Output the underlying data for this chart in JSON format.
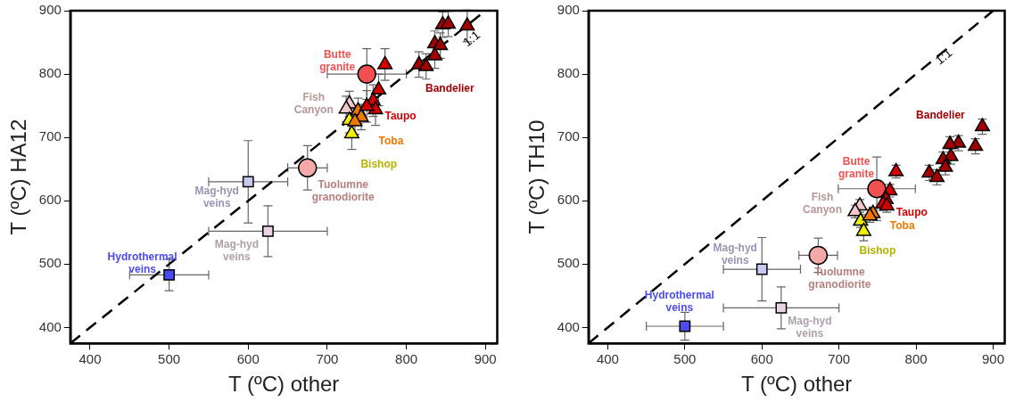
{
  "chart_data": [
    {
      "type": "scatter",
      "xlabel": "T (ºC) other",
      "ylabel": "T (ºC) HA12",
      "xlim": [
        375,
        915
      ],
      "ylim": [
        375,
        900
      ],
      "xticks": [
        400,
        500,
        600,
        700,
        800,
        900
      ],
      "yticks": [
        400,
        500,
        600,
        700,
        800,
        900
      ],
      "series": [
        {
          "name": "1:1",
          "type": "line",
          "color": "#000000",
          "line_style": "dashed",
          "marker": "none",
          "x": [
            375,
            900
          ],
          "values": [
            375,
            900
          ]
        },
        {
          "name": "Hydrothermal veins",
          "color": "#4b4bf0",
          "marker": "square",
          "x": [
            500
          ],
          "values": [
            483
          ],
          "errors": [
            25
          ],
          "xerrors": [
            50
          ]
        },
        {
          "name": "Mag-hyd veins",
          "color": "#c8c8f0",
          "marker": "square",
          "x": [
            600
          ],
          "values": [
            630
          ],
          "errors": [
            65
          ],
          "xerrors": [
            50
          ]
        },
        {
          "name": "Mag-hyd veins",
          "color": "#e8d4e4",
          "marker": "square",
          "x": [
            625
          ],
          "values": [
            552
          ],
          "errors": [
            40
          ],
          "xerrors": [
            75
          ]
        },
        {
          "name": "Tuolumne granodiorite",
          "color": "#f4a8a8",
          "marker": "circle",
          "x": [
            675
          ],
          "values": [
            652
          ],
          "errors": [
            35
          ],
          "xerrors": [
            25
          ]
        },
        {
          "name": "Butte granite",
          "color": "#f05050",
          "marker": "circle",
          "x": [
            750
          ],
          "values": [
            800
          ],
          "errors": [
            40
          ],
          "xerrors": [
            50
          ]
        },
        {
          "name": "Fish Canyon",
          "color": "#f4c8c8",
          "marker": "triangle",
          "x": [
            728,
            724
          ],
          "values": [
            753,
            745
          ],
          "errors": [
            20,
            20
          ]
        },
        {
          "name": "Bishop",
          "color": "#f0f000",
          "marker": "triangle",
          "x": [
            728,
            731
          ],
          "values": [
            727,
            706
          ],
          "errors": [
            20,
            25
          ]
        },
        {
          "name": "Toba",
          "color": "#f07800",
          "marker": "triangle",
          "x": [
            739,
            743,
            735
          ],
          "values": [
            742,
            732,
            725
          ],
          "errors": [
            20,
            20,
            20
          ]
        },
        {
          "name": "Taupo",
          "color": "#d40000",
          "marker": "triangle",
          "x": [
            765,
            758,
            761,
            750,
            773
          ],
          "values": [
            775,
            758,
            744,
            749,
            815
          ],
          "errors": [
            25,
            25,
            25,
            25,
            25
          ]
        },
        {
          "name": "Bandelier",
          "color": "#a00000",
          "marker": "triangle",
          "x": [
            846,
            853,
            877,
            836,
            843,
            836,
            816,
            825
          ],
          "values": [
            878,
            879,
            876,
            848,
            845,
            829,
            815,
            812
          ],
          "errors": [
            20,
            20,
            25,
            20,
            20,
            20,
            20,
            20
          ]
        }
      ]
    },
    {
      "type": "scatter",
      "xlabel": "T (ºC) other",
      "ylabel": "T (ºC) TH10",
      "xlim": [
        375,
        915
      ],
      "ylim": [
        375,
        900
      ],
      "xticks": [
        400,
        500,
        600,
        700,
        800,
        900
      ],
      "yticks": [
        400,
        500,
        600,
        700,
        800,
        900
      ],
      "series": [
        {
          "name": "1:1",
          "type": "line",
          "color": "#000000",
          "line_style": "dashed",
          "marker": "none",
          "x": [
            375,
            900
          ],
          "values": [
            375,
            900
          ]
        },
        {
          "name": "Hydrothermal veins",
          "color": "#4b4bf0",
          "marker": "square",
          "x": [
            500
          ],
          "values": [
            402
          ],
          "errors": [
            22
          ],
          "xerrors": [
            50
          ]
        },
        {
          "name": "Mag-hyd veins",
          "color": "#c8c8f0",
          "marker": "square",
          "x": [
            600
          ],
          "values": [
            492
          ],
          "errors": [
            50
          ],
          "xerrors": [
            50
          ]
        },
        {
          "name": "Mag-hyd veins",
          "color": "#e8d4e4",
          "marker": "square",
          "x": [
            625
          ],
          "values": [
            431
          ],
          "errors": [
            33
          ],
          "xerrors": [
            75
          ]
        },
        {
          "name": "Tuolumne granodiorite",
          "color": "#f4a8a8",
          "marker": "circle",
          "x": [
            673
          ],
          "values": [
            514
          ],
          "errors": [
            27
          ],
          "xerrors": [
            25
          ]
        },
        {
          "name": "Butte granite",
          "color": "#f05050",
          "marker": "circle",
          "x": [
            749
          ],
          "values": [
            619
          ],
          "errors": [
            50
          ],
          "xerrors": [
            50
          ]
        },
        {
          "name": "Fish Canyon",
          "color": "#f4c8c8",
          "marker": "triangle",
          "x": [
            727,
            721
          ],
          "values": [
            592,
            583
          ],
          "errors": [
            10,
            10
          ]
        },
        {
          "name": "Bishop",
          "color": "#f0f000",
          "marker": "triangle",
          "x": [
            728,
            732
          ],
          "values": [
            568,
            552
          ],
          "errors": [
            10,
            15
          ]
        },
        {
          "name": "Toba",
          "color": "#f07800",
          "marker": "triangle",
          "x": [
            744,
            740
          ],
          "values": [
            580,
            576
          ],
          "errors": [
            10,
            10
          ]
        },
        {
          "name": "Taupo",
          "color": "#d40000",
          "marker": "triangle",
          "x": [
            774,
            766,
            761,
            757,
            762
          ],
          "values": [
            646,
            616,
            602,
            595,
            592
          ],
          "errors": [
            10,
            10,
            10,
            10,
            10
          ]
        },
        {
          "name": "Bandelier",
          "color": "#a00000",
          "marker": "triangle",
          "x": [
            886,
            877,
            855,
            844,
            845,
            835,
            838,
            817,
            827
          ],
          "values": [
            717,
            686,
            691,
            689,
            670,
            665,
            653,
            644,
            637
          ],
          "errors": [
            12,
            12,
            12,
            12,
            12,
            12,
            12,
            12,
            12
          ]
        }
      ]
    }
  ]
}
